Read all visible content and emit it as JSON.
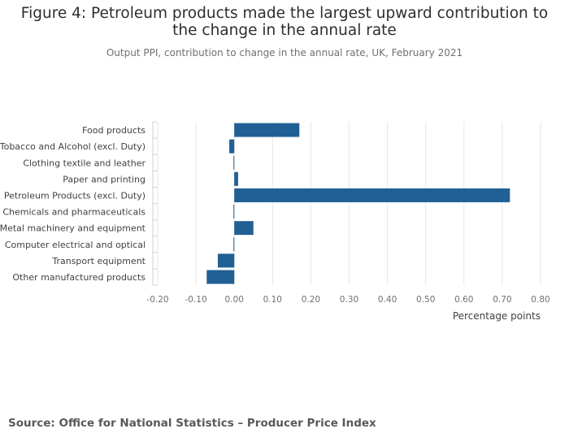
{
  "title": "Figure 4: Petroleum products made the largest upward contribution to the change in the annual rate",
  "subtitle": "Output PPI, contribution to change in the annual rate, UK, February 2021",
  "source": "Source: Office for National Statistics – Producer Price Index",
  "colors": {
    "bar": "#206095",
    "grid": "#e6e6e6",
    "tick_text": "#707071",
    "label_text": "#414042"
  },
  "chart_data": {
    "type": "bar",
    "orientation": "horizontal",
    "categories": [
      "Food products",
      "Tobacco and Alcohol (excl. Duty)",
      "Clothing textile and leather",
      "Paper and printing",
      "Petroleum Products (excl. Duty)",
      "Chemicals and pharmaceuticals",
      "Metal machinery and equipment",
      "Computer electrical and optical",
      "Transport equipment",
      "Other manufactured products"
    ],
    "values": [
      0.17,
      -0.013,
      -0.002,
      0.01,
      0.72,
      -0.002,
      0.05,
      -0.002,
      -0.043,
      -0.072
    ],
    "xlim": [
      -0.2,
      0.8
    ],
    "xticks": [
      "-0.20",
      "-0.10",
      "0.00",
      "0.10",
      "0.20",
      "0.30",
      "0.40",
      "0.50",
      "0.60",
      "0.70",
      "0.80"
    ],
    "xlabel": "Percentage points",
    "ylabel": "",
    "grid": true,
    "legend": "none"
  }
}
